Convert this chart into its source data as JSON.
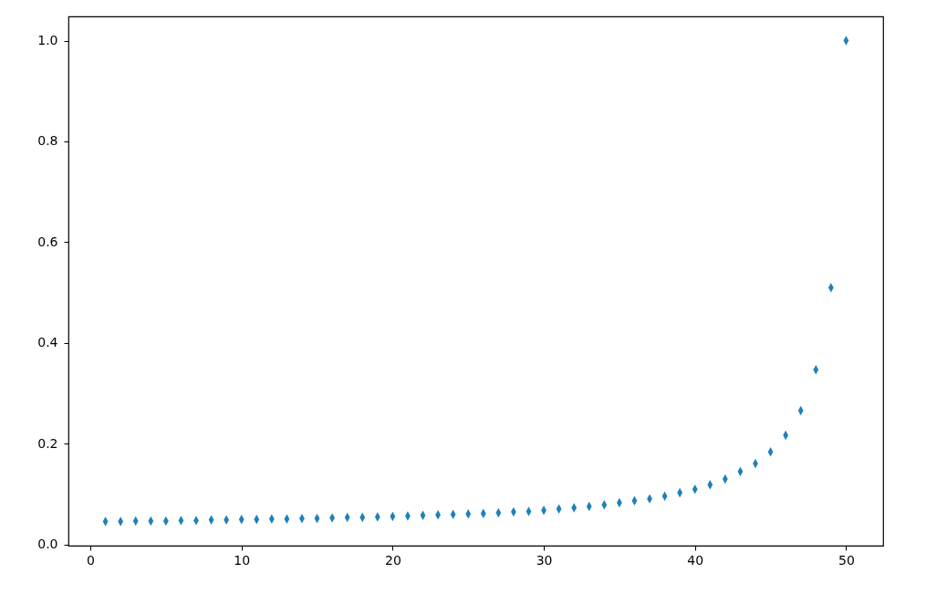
{
  "chart_data": {
    "type": "scatter",
    "marker": "diamond",
    "grid": false,
    "x": [
      1,
      2,
      3,
      4,
      5,
      6,
      7,
      8,
      9,
      10,
      11,
      12,
      13,
      14,
      15,
      16,
      17,
      18,
      19,
      20,
      21,
      22,
      23,
      24,
      25,
      26,
      27,
      28,
      29,
      30,
      31,
      32,
      33,
      34,
      35,
      36,
      37,
      38,
      39,
      40,
      41,
      42,
      43,
      44,
      45,
      46,
      47,
      48,
      49,
      50
    ],
    "series": [
      {
        "color": "#1f80bb",
        "values": [
          0.046,
          0.046,
          0.047,
          0.047,
          0.047,
          0.048,
          0.048,
          0.049,
          0.049,
          0.05,
          0.05,
          0.051,
          0.051,
          0.052,
          0.052,
          0.053,
          0.054,
          0.054,
          0.055,
          0.056,
          0.057,
          0.058,
          0.059,
          0.06,
          0.061,
          0.062,
          0.063,
          0.065,
          0.066,
          0.068,
          0.071,
          0.073,
          0.076,
          0.079,
          0.083,
          0.087,
          0.091,
          0.096,
          0.103,
          0.11,
          0.119,
          0.13,
          0.145,
          0.161,
          0.184,
          0.217,
          0.266,
          0.347,
          0.51,
          1.0
        ]
      }
    ],
    "xlim": [
      -1.45,
      52.45
    ],
    "xticks": [
      0,
      10,
      20,
      30,
      40,
      50
    ],
    "ylim": [
      -0.002,
      1.048
    ],
    "yticks": [
      {
        "value": 0,
        "label": "0.0"
      },
      0.2,
      0.4,
      0.6,
      0.8,
      {
        "value": 1,
        "label": "1.0"
      }
    ]
  }
}
